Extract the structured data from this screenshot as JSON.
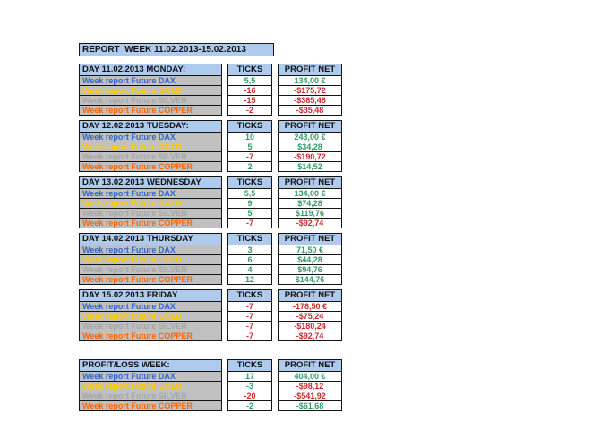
{
  "title": "REPORT  WEEK 11.02.2013-15.02.2013",
  "column_headers": {
    "ticks": "TICKS",
    "profit_net": "PROFIT NET"
  },
  "colors": {
    "header_bg": "#aecbee",
    "label_bg": "#c0c0c0",
    "positive": "#339966",
    "negative": "#cc2929",
    "dax": "#3366cc",
    "gold": "#ffcc00",
    "silver": "#a6a6a6",
    "copper": "#ff6600",
    "border": "#141414"
  },
  "tables": [
    {
      "header": "DAY 11.02.2013 MONDAY:",
      "rows": [
        {
          "label": "Week report Future DAX",
          "label_color": "#3366cc",
          "ticks": "5,5",
          "ticks_color": "#339966",
          "profit": "134,00 €",
          "profit_color": "#339966"
        },
        {
          "label": "Week report Future GOLD",
          "label_color": "#ffcc00",
          "ticks": "-16",
          "ticks_color": "#cc2929",
          "profit": "-$175,72",
          "profit_color": "#cc2929"
        },
        {
          "label": "Week report Future SILVER",
          "label_color": "#a6a6a6",
          "ticks": "-15",
          "ticks_color": "#cc2929",
          "profit": "-$385,48",
          "profit_color": "#cc2929"
        },
        {
          "label": "Week report Future COPPER",
          "label_color": "#ff6600",
          "ticks": "-2",
          "ticks_color": "#cc2929",
          "profit": "-$35,48",
          "profit_color": "#cc2929"
        }
      ]
    },
    {
      "header": "DAY 12.02.2013 TUESDAY:",
      "rows": [
        {
          "label": "Week report Future DAX",
          "label_color": "#3366cc",
          "ticks": "10",
          "ticks_color": "#339966",
          "profit": "243,00 €",
          "profit_color": "#339966"
        },
        {
          "label": "Week report Future GOLD",
          "label_color": "#ffcc00",
          "ticks": "5",
          "ticks_color": "#339966",
          "profit": "$34,28",
          "profit_color": "#339966"
        },
        {
          "label": "Week report Future SILVER",
          "label_color": "#a6a6a6",
          "ticks": "-7",
          "ticks_color": "#cc2929",
          "profit": "-$190,72",
          "profit_color": "#cc2929"
        },
        {
          "label": "Week report Future COPPER",
          "label_color": "#ff6600",
          "ticks": "2",
          "ticks_color": "#339966",
          "profit": "$14,52",
          "profit_color": "#339966"
        }
      ]
    },
    {
      "header": "DAY 13.02.2013 WEDNESDAY",
      "rows": [
        {
          "label": "Week report Future DAX",
          "label_color": "#3366cc",
          "ticks": "5,5",
          "ticks_color": "#339966",
          "profit": "134,00 €",
          "profit_color": "#339966"
        },
        {
          "label": "Week report Future GOLD",
          "label_color": "#ffcc00",
          "ticks": "9",
          "ticks_color": "#339966",
          "profit": "$74,28",
          "profit_color": "#339966"
        },
        {
          "label": "Week report Future SILVER",
          "label_color": "#a6a6a6",
          "ticks": "5",
          "ticks_color": "#339966",
          "profit": "$119,76",
          "profit_color": "#339966"
        },
        {
          "label": "Week report Future COPPER",
          "label_color": "#ff6600",
          "ticks": "-7",
          "ticks_color": "#cc2929",
          "profit": "-$92,74",
          "profit_color": "#cc2929"
        }
      ]
    },
    {
      "header": "DAY 14.02.2013 THURSDAY",
      "rows": [
        {
          "label": "Week report Future DAX",
          "label_color": "#3366cc",
          "ticks": "3",
          "ticks_color": "#339966",
          "profit": "71,50 €",
          "profit_color": "#339966"
        },
        {
          "label": "Week report Future GOLD",
          "label_color": "#ffcc00",
          "ticks": "6",
          "ticks_color": "#339966",
          "profit": "$44,28",
          "profit_color": "#339966"
        },
        {
          "label": "Week report Future SILVER",
          "label_color": "#a6a6a6",
          "ticks": "4",
          "ticks_color": "#339966",
          "profit": "$94,76",
          "profit_color": "#339966"
        },
        {
          "label": "Week report Future COPPER",
          "label_color": "#ff6600",
          "ticks": "12",
          "ticks_color": "#339966",
          "profit": "$144,76",
          "profit_color": "#339966"
        }
      ]
    },
    {
      "header": "DAY 15.02.2013 FRIDAY",
      "rows": [
        {
          "label": "Week report Future DAX",
          "label_color": "#3366cc",
          "ticks": "-7",
          "ticks_color": "#cc2929",
          "profit": "-178,50 €",
          "profit_color": "#cc2929"
        },
        {
          "label": "Week report Future GOLD",
          "label_color": "#ffcc00",
          "ticks": "-7",
          "ticks_color": "#cc2929",
          "profit": "-$75,24",
          "profit_color": "#cc2929"
        },
        {
          "label": "Week report Future SILVER",
          "label_color": "#a6a6a6",
          "ticks": "-7",
          "ticks_color": "#cc2929",
          "profit": "-$180,24",
          "profit_color": "#cc2929"
        },
        {
          "label": "Week report Future COPPER",
          "label_color": "#ff6600",
          "ticks": "-7",
          "ticks_color": "#cc2929",
          "profit": "-$92,74",
          "profit_color": "#cc2929"
        }
      ]
    },
    {
      "header": "PROFIT/LOSS WEEK:",
      "rows": [
        {
          "label": "Week report Future DAX",
          "label_color": "#3366cc",
          "ticks": "17",
          "ticks_color": "#339966",
          "profit": "404,00 €",
          "profit_color": "#339966"
        },
        {
          "label": "Week report Future GOLD",
          "label_color": "#ffcc00",
          "ticks": "-3",
          "ticks_color": "#339966",
          "profit": "-$98,12",
          "profit_color": "#cc2929"
        },
        {
          "label": "Week report Future SILVER",
          "label_color": "#a6a6a6",
          "ticks": "-20",
          "ticks_color": "#cc2929",
          "profit": "-$541,92",
          "profit_color": "#cc2929"
        },
        {
          "label": "Week report Future COPPER",
          "label_color": "#ff6600",
          "ticks": "-2",
          "ticks_color": "#339966",
          "profit": "-$61,68",
          "profit_color": "#339966"
        }
      ]
    }
  ]
}
